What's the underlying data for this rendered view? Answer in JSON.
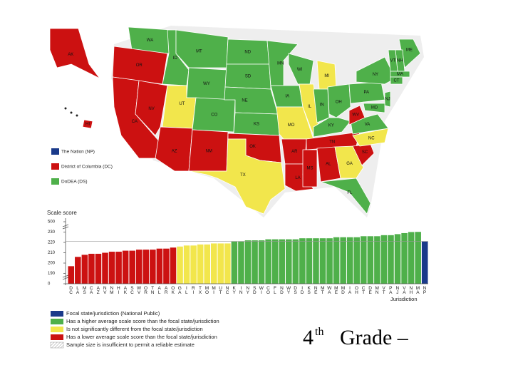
{
  "map": {
    "legend": [
      {
        "label": "The Nation (NP)",
        "color": "#1a3a8a"
      },
      {
        "label": "District of Columbia (DC)",
        "color": "#cc1111"
      },
      {
        "label": "DoDEA (DS)",
        "color": "#4fb04a"
      }
    ],
    "states": [
      {
        "label": "WA",
        "color": "#4fb04a"
      },
      {
        "label": "OR",
        "color": "#cc1111"
      },
      {
        "label": "CA",
        "color": "#cc1111"
      },
      {
        "label": "NV",
        "color": "#cc1111"
      },
      {
        "label": "ID",
        "color": "#4fb04a"
      },
      {
        "label": "MT",
        "color": "#4fb04a"
      },
      {
        "label": "WY",
        "color": "#4fb04a"
      },
      {
        "label": "UT",
        "color": "#f2e64c"
      },
      {
        "label": "AZ",
        "color": "#cc1111"
      },
      {
        "label": "CO",
        "color": "#4fb04a"
      },
      {
        "label": "NM",
        "color": "#cc1111"
      },
      {
        "label": "ND",
        "color": "#4fb04a"
      },
      {
        "label": "SD",
        "color": "#4fb04a"
      },
      {
        "label": "NE",
        "color": "#4fb04a"
      },
      {
        "label": "KS",
        "color": "#4fb04a"
      },
      {
        "label": "OK",
        "color": "#cc1111"
      },
      {
        "label": "TX",
        "color": "#f2e64c"
      },
      {
        "label": "MN",
        "color": "#4fb04a"
      },
      {
        "label": "IA",
        "color": "#4fb04a"
      },
      {
        "label": "MO",
        "color": "#f2e64c"
      },
      {
        "label": "AR",
        "color": "#cc1111"
      },
      {
        "label": "LA",
        "color": "#cc1111"
      },
      {
        "label": "WI",
        "color": "#4fb04a"
      },
      {
        "label": "IL",
        "color": "#f2e64c"
      },
      {
        "label": "MI",
        "color": "#f2e64c"
      },
      {
        "label": "IN",
        "color": "#4fb04a"
      },
      {
        "label": "OH",
        "color": "#4fb04a"
      },
      {
        "label": "KY",
        "color": "#4fb04a"
      },
      {
        "label": "TN",
        "color": "#cc1111"
      },
      {
        "label": "MS",
        "color": "#cc1111"
      },
      {
        "label": "AL",
        "color": "#cc1111"
      },
      {
        "label": "GA",
        "color": "#f2e64c"
      },
      {
        "label": "FL",
        "color": "#4fb04a"
      },
      {
        "label": "SC",
        "color": "#cc1111"
      },
      {
        "label": "NC",
        "color": "#f2e64c"
      },
      {
        "label": "VA",
        "color": "#4fb04a"
      },
      {
        "label": "WV",
        "color": "#cc1111"
      },
      {
        "label": "PA",
        "color": "#4fb04a"
      },
      {
        "label": "NY",
        "color": "#4fb04a"
      },
      {
        "label": "ME",
        "color": "#4fb04a"
      },
      {
        "label": "NH",
        "color": "#4fb04a"
      },
      {
        "label": "VT",
        "color": "#4fb04a"
      },
      {
        "label": "MA",
        "color": "#4fb04a"
      },
      {
        "label": "CT",
        "color": "#4fb04a"
      },
      {
        "label": "NJ",
        "color": "#4fb04a"
      },
      {
        "label": "MD",
        "color": "#4fb04a"
      },
      {
        "label": "AK",
        "color": "#cc1111"
      },
      {
        "label": "HI",
        "color": "#cc1111"
      }
    ]
  },
  "chart_data": {
    "type": "bar",
    "y_label": "Scale score",
    "x_label": "Jurisdiction",
    "categories": [
      "DC",
      "LA",
      "MS",
      "CA",
      "AZ",
      "NV",
      "NM",
      "HI",
      "AK",
      "SC",
      "WV",
      "OR",
      "TN",
      "AL",
      "AR",
      "OK",
      "GA",
      "IL",
      "RI",
      "TX",
      "MO",
      "MI",
      "UT",
      "NC",
      "KY",
      "IN",
      "NY",
      "SD",
      "WI",
      "CO",
      "FL",
      "ND",
      "WY",
      "DS",
      "ID",
      "KS",
      "NE",
      "MT",
      "WA",
      "ME",
      "MD",
      "IA",
      "OH",
      "CT",
      "DE",
      "MN",
      "VT",
      "PA",
      "NJ",
      "VA",
      "NH",
      "MA",
      "NP"
    ],
    "values": [
      197,
      206,
      208,
      209,
      209,
      210,
      211,
      211,
      212,
      212,
      213,
      213,
      213,
      214,
      214,
      215,
      216,
      217,
      217,
      218,
      218,
      219,
      219,
      219,
      221,
      221,
      222,
      222,
      222,
      223,
      223,
      223,
      223,
      223,
      224,
      224,
      224,
      224,
      224,
      225,
      225,
      225,
      225,
      226,
      226,
      226,
      227,
      227,
      228,
      229,
      231,
      235,
      221
    ],
    "colors": [
      "#cc1111",
      "#cc1111",
      "#cc1111",
      "#cc1111",
      "#cc1111",
      "#cc1111",
      "#cc1111",
      "#cc1111",
      "#cc1111",
      "#cc1111",
      "#cc1111",
      "#cc1111",
      "#cc1111",
      "#cc1111",
      "#cc1111",
      "#cc1111",
      "#f2e64c",
      "#f2e64c",
      "#f2e64c",
      "#f2e64c",
      "#f2e64c",
      "#f2e64c",
      "#f2e64c",
      "#f2e64c",
      "#4fb04a",
      "#4fb04a",
      "#4fb04a",
      "#4fb04a",
      "#4fb04a",
      "#4fb04a",
      "#4fb04a",
      "#4fb04a",
      "#4fb04a",
      "#4fb04a",
      "#4fb04a",
      "#4fb04a",
      "#4fb04a",
      "#4fb04a",
      "#4fb04a",
      "#4fb04a",
      "#4fb04a",
      "#4fb04a",
      "#4fb04a",
      "#4fb04a",
      "#4fb04a",
      "#4fb04a",
      "#4fb04a",
      "#4fb04a",
      "#4fb04a",
      "#4fb04a",
      "#4fb04a",
      "#4fb04a",
      "#1a3a8a"
    ],
    "ylim": [
      0,
      500
    ],
    "yticks": [
      500,
      230,
      220,
      210,
      200,
      190,
      0
    ],
    "legend": [
      {
        "label": "Focal state/jurisdiction (National Public)",
        "color": "#1a3a8a"
      },
      {
        "label": "Has a higher average scale score than the focal state/jurisdiction",
        "color": "#4fb04a"
      },
      {
        "label": "Is not significantly different from the focal state/jurisdiction",
        "color": "#f2e64c"
      },
      {
        "label": "Has a lower average scale score than the focal state/jurisdiction",
        "color": "#cc1111"
      },
      {
        "label": "Sample size is insufficient to permit a reliable estimate",
        "color": "hatch"
      }
    ]
  },
  "heading": {
    "number": "4",
    "suffix": "th",
    "text": "Grade –"
  }
}
